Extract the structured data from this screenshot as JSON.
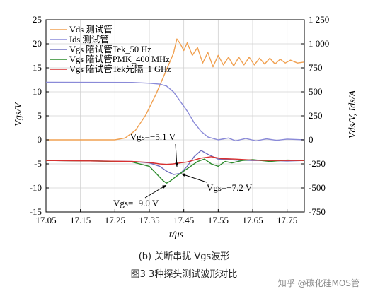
{
  "chart_data": {
    "type": "line",
    "xlabel": "t/μs",
    "ylabel_left": "Vgs/V",
    "ylabel_right": "Vds/V, Ids/A",
    "xlim": [
      17.05,
      17.8
    ],
    "ylim_left": [
      -15,
      25
    ],
    "ylim_right": [
      -750,
      1250
    ],
    "x_ticks": [
      "17.05",
      "17.15",
      "17.25",
      "17.35",
      "17.45",
      "17.55",
      "17.65",
      "17.75"
    ],
    "y_ticks_left": [
      "-15",
      "-10",
      "-5",
      "0",
      "5",
      "10",
      "15",
      "20",
      "25"
    ],
    "y_ticks_right": [
      "-750",
      "-500",
      "-250",
      "0",
      "250",
      "500",
      "750",
      "1 000",
      "1 250"
    ],
    "grid": true,
    "legend_position": "top-left",
    "series": [
      {
        "name": "Vds 测试管",
        "axis": "right",
        "color": "#f0a050",
        "x": [
          17.05,
          17.25,
          17.28,
          17.31,
          17.34,
          17.37,
          17.4,
          17.42,
          17.43,
          17.44,
          17.45,
          17.46,
          17.475,
          17.49,
          17.505,
          17.52,
          17.535,
          17.55,
          17.565,
          17.58,
          17.595,
          17.61,
          17.625,
          17.64,
          17.655,
          17.67,
          17.685,
          17.7,
          17.715,
          17.73,
          17.745,
          17.76,
          17.78,
          17.8
        ],
        "y": [
          0,
          0,
          20,
          100,
          260,
          480,
          730,
          900,
          1050,
          1000,
          930,
          1010,
          880,
          960,
          800,
          910,
          760,
          880,
          780,
          860,
          770,
          860,
          780,
          860,
          780,
          850,
          790,
          850,
          790,
          840,
          800,
          830,
          800,
          810
        ]
      },
      {
        "name": "Ids 测试管",
        "axis": "right",
        "color": "#8a8ad8",
        "x": [
          17.05,
          17.3,
          17.35,
          17.38,
          17.4,
          17.42,
          17.44,
          17.46,
          17.48,
          17.5,
          17.52,
          17.55,
          17.58,
          17.6,
          17.63,
          17.66,
          17.69,
          17.72,
          17.75,
          17.8
        ],
        "y": [
          600,
          598,
          590,
          580,
          560,
          500,
          400,
          300,
          180,
          90,
          30,
          0,
          20,
          -10,
          15,
          -10,
          10,
          -5,
          8,
          0
        ]
      },
      {
        "name": "Vgs 陪试管Tek_50 Hz",
        "axis": "left",
        "color": "#7070c0",
        "x": [
          17.05,
          17.2,
          17.3,
          17.35,
          17.38,
          17.4,
          17.42,
          17.44,
          17.46,
          17.48,
          17.5,
          17.52,
          17.55,
          17.6,
          17.65,
          17.7,
          17.75,
          17.8
        ],
        "y": [
          -4.3,
          -4.4,
          -4.5,
          -4.8,
          -5.5,
          -6.5,
          -7.2,
          -7.0,
          -5.5,
          -3.5,
          -2.2,
          -3.0,
          -4.0,
          -4.2,
          -4.3,
          -4.3,
          -4.4,
          -4.3
        ]
      },
      {
        "name": "Vgs 陪试管PMK_400 MHz",
        "axis": "left",
        "color": "#2a8a2a",
        "x": [
          17.05,
          17.2,
          17.3,
          17.35,
          17.37,
          17.39,
          17.4,
          17.41,
          17.43,
          17.45,
          17.47,
          17.49,
          17.51,
          17.53,
          17.55,
          17.57,
          17.59,
          17.62,
          17.65,
          17.7,
          17.75,
          17.8
        ],
        "y": [
          -4.3,
          -4.4,
          -4.6,
          -5.5,
          -7.0,
          -8.5,
          -9.0,
          -8.6,
          -7.5,
          -6.5,
          -5.5,
          -4.5,
          -4.0,
          -5.0,
          -5.5,
          -4.5,
          -4.8,
          -4.3,
          -4.1,
          -4.5,
          -4.2,
          -4.3
        ]
      },
      {
        "name": "Vgs 陪试管Tek光隔_1 GHz",
        "axis": "left",
        "color": "#d83030",
        "x": [
          17.05,
          17.2,
          17.3,
          17.35,
          17.38,
          17.4,
          17.42,
          17.44,
          17.46,
          17.48,
          17.5,
          17.53,
          17.56,
          17.6,
          17.65,
          17.7,
          17.75,
          17.8
        ],
        "y": [
          -4.3,
          -4.4,
          -4.5,
          -4.7,
          -5.0,
          -5.1,
          -5.0,
          -4.8,
          -4.6,
          -4.2,
          -3.8,
          -3.5,
          -3.9,
          -4.0,
          -4.2,
          -4.3,
          -4.3,
          -4.3
        ]
      }
    ],
    "annotations": [
      {
        "text": "Vgs=−5.1 V"
      },
      {
        "text": "Vgs=−7.2 V"
      },
      {
        "text": "Vgs=−9.0 V"
      }
    ]
  },
  "caption": {
    "sub": "(b) 关断串扰 Vgs波形",
    "main": "图3   3种探头测试波形对比"
  },
  "watermark": "知乎 @碳化硅MOS管"
}
